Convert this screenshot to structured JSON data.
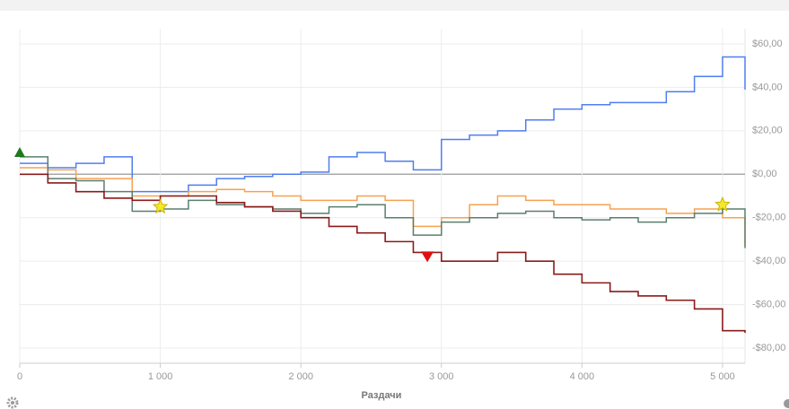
{
  "chart_data": {
    "type": "line",
    "x_label": "Раздачи",
    "x": [
      0,
      200,
      400,
      600,
      800,
      1000,
      1200,
      1400,
      1600,
      1800,
      2000,
      2200,
      2400,
      2600,
      2800,
      3000,
      3200,
      3400,
      3600,
      3800,
      4000,
      4200,
      4400,
      4600,
      4800,
      5000,
      5160
    ],
    "series": [
      {
        "color": "#4f7ef0",
        "values": [
          5,
          3,
          5,
          8,
          -8,
          -8,
          -5,
          -2,
          -1,
          0,
          1,
          8,
          10,
          6,
          2,
          16,
          18,
          20,
          25,
          30,
          32,
          33,
          33,
          38,
          45,
          54,
          39
        ]
      },
      {
        "color": "#f7a150",
        "values": [
          3,
          2,
          -2,
          -2,
          -10,
          -10,
          -8,
          -7,
          -8,
          -10,
          -12,
          -12,
          -10,
          -12,
          -24,
          -20,
          -14,
          -10,
          -12,
          -14,
          -14,
          -16,
          -16,
          -18,
          -16,
          -20,
          -33
        ]
      },
      {
        "color": "#5a7f6d",
        "values": [
          8,
          -2,
          -3,
          -8,
          -17,
          -16,
          -12,
          -14,
          -15,
          -16,
          -18,
          -15,
          -14,
          -20,
          -28,
          -22,
          -20,
          -18,
          -17,
          -20,
          -21,
          -20,
          -22,
          -20,
          -18,
          -16,
          -34
        ]
      },
      {
        "color": "#8b1a1a",
        "values": [
          0,
          -4,
          -8,
          -11,
          -12,
          -10,
          -10,
          -13,
          -15,
          -17,
          -20,
          -24,
          -27,
          -31,
          -36,
          -40,
          -40,
          -36,
          -40,
          -46,
          -50,
          -54,
          -56,
          -58,
          -62,
          -72,
          -73
        ]
      }
    ],
    "markers": [
      {
        "x": 0,
        "y": 10,
        "shape": "triangle-up",
        "color": "#1e7a1e"
      },
      {
        "x": 1000,
        "y": -15,
        "shape": "star",
        "color": "#f5e82a"
      },
      {
        "x": 2900,
        "y": -38,
        "shape": "triangle-down",
        "color": "#e01010"
      },
      {
        "x": 5000,
        "y": -14,
        "shape": "star",
        "color": "#f5e82a"
      }
    ],
    "xlim": [
      0,
      5160
    ],
    "xticks": [
      0,
      {
        "value": 1000,
        "label": "1 000"
      },
      {
        "value": 2000,
        "label": "2 000"
      },
      {
        "value": 3000,
        "label": "3 000"
      },
      {
        "value": 4000,
        "label": "4 000"
      },
      {
        "value": 5000,
        "label": "5 000"
      }
    ],
    "ylim": [
      -87,
      67
    ],
    "yticks": [
      {
        "value": -80,
        "label": "-$80,00"
      },
      {
        "value": -60,
        "label": "-$60,00"
      },
      {
        "value": -40,
        "label": "-$40,00"
      },
      {
        "value": -20,
        "label": "-$20,00"
      },
      {
        "value": 0,
        "label": "$0,00"
      },
      {
        "value": 20,
        "label": "$20,00"
      },
      {
        "value": 40,
        "label": "$40,00"
      },
      {
        "value": 60,
        "label": "$60,00"
      }
    ],
    "grid": true
  }
}
